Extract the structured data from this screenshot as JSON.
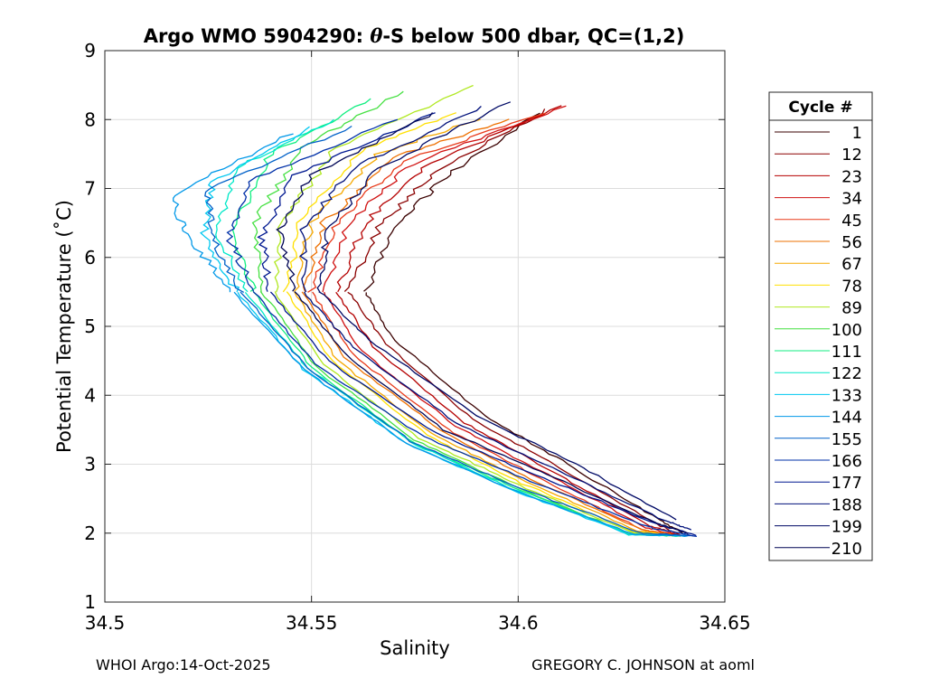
{
  "chart_data": {
    "type": "line",
    "title": "Argo WMO 5904290: θ-S below 500 dbar,  QC=(1,2)",
    "title_prefix": "Argo WMO 5904290: ",
    "title_theta": "θ",
    "title_suffix": "-S below 500 dbar,  QC=(1,2)",
    "xlabel": "Salinity",
    "ylabel": "Potential Temperature (˚C)",
    "xlim": [
      34.5,
      34.65
    ],
    "ylim": [
      1,
      9
    ],
    "xticks": [
      34.5,
      34.55,
      34.6,
      34.65
    ],
    "xtick_labels": [
      "34.5",
      "34.55",
      "34.6",
      "34.65"
    ],
    "yticks": [
      1,
      2,
      3,
      4,
      5,
      6,
      7,
      8,
      9
    ],
    "ytick_labels": [
      "1",
      "2",
      "3",
      "4",
      "5",
      "6",
      "7",
      "8",
      "9"
    ],
    "grid": true,
    "legend": {
      "title": "Cycle #",
      "placement": "right",
      "entries": [
        {
          "label": "1",
          "color": "#3a0000"
        },
        {
          "label": "12",
          "color": "#8b0000"
        },
        {
          "label": "23",
          "color": "#b50000"
        },
        {
          "label": "34",
          "color": "#d01010"
        },
        {
          "label": "45",
          "color": "#e83a1a"
        },
        {
          "label": "56",
          "color": "#ee7000"
        },
        {
          "label": "67",
          "color": "#f5a800"
        },
        {
          "label": "78",
          "color": "#ffe000"
        },
        {
          "label": "89",
          "color": "#b0e820"
        },
        {
          "label": "100",
          "color": "#44e040"
        },
        {
          "label": "111",
          "color": "#10ee80"
        },
        {
          "label": "122",
          "color": "#00e8c8"
        },
        {
          "label": "133",
          "color": "#00c8f0"
        },
        {
          "label": "144",
          "color": "#0098e8"
        },
        {
          "label": "155",
          "color": "#0060c8"
        },
        {
          "label": "166",
          "color": "#0030a8"
        },
        {
          "label": "177",
          "color": "#001890"
        },
        {
          "label": "188",
          "color": "#00107a"
        },
        {
          "label": "199",
          "color": "#000a66"
        },
        {
          "label": "210",
          "color": "#000555"
        }
      ]
    },
    "series": [
      {
        "name": "1",
        "color": "#3a0000",
        "points": [
          [
            34.563,
            5.5
          ],
          [
            34.57,
            4.8
          ],
          [
            34.592,
            3.7
          ],
          [
            34.612,
            3.0
          ],
          [
            34.634,
            2.2
          ],
          [
            34.64,
            2.0
          ]
        ],
        "upper": [
          [
            34.563,
            5.5
          ],
          [
            34.571,
            6.5
          ],
          [
            34.583,
            7.2
          ],
          [
            34.605,
            8.1
          ]
        ]
      },
      {
        "name": "12",
        "color": "#8b0000",
        "points": [
          [
            34.559,
            5.5
          ],
          [
            34.568,
            4.75
          ],
          [
            34.589,
            3.65
          ],
          [
            34.61,
            2.95
          ],
          [
            34.633,
            2.15
          ],
          [
            34.639,
            1.98
          ]
        ],
        "upper": [
          [
            34.559,
            5.5
          ],
          [
            34.567,
            6.5
          ],
          [
            34.58,
            7.25
          ],
          [
            34.607,
            8.15
          ]
        ]
      },
      {
        "name": "23",
        "color": "#b50000",
        "points": [
          [
            34.556,
            5.5
          ],
          [
            34.565,
            4.7
          ],
          [
            34.587,
            3.6
          ],
          [
            34.608,
            2.9
          ],
          [
            34.632,
            2.1
          ],
          [
            34.639,
            1.97
          ]
        ],
        "upper": [
          [
            34.556,
            5.5
          ],
          [
            34.563,
            6.5
          ],
          [
            34.577,
            7.3
          ],
          [
            34.61,
            8.2
          ]
        ]
      },
      {
        "name": "34",
        "color": "#d01010",
        "points": [
          [
            34.553,
            5.5
          ],
          [
            34.562,
            4.65
          ],
          [
            34.585,
            3.55
          ],
          [
            34.607,
            2.85
          ],
          [
            34.631,
            2.08
          ],
          [
            34.639,
            1.97
          ]
        ],
        "upper": [
          [
            34.553,
            5.5
          ],
          [
            34.559,
            6.5
          ],
          [
            34.574,
            7.35
          ],
          [
            34.612,
            8.2
          ]
        ]
      },
      {
        "name": "45",
        "color": "#e83a1a",
        "points": [
          [
            34.55,
            5.5
          ],
          [
            34.56,
            4.6
          ],
          [
            34.583,
            3.5
          ],
          [
            34.605,
            2.8
          ],
          [
            34.63,
            2.05
          ],
          [
            34.639,
            1.96
          ]
        ],
        "upper": [
          [
            34.55,
            5.5
          ],
          [
            34.556,
            6.5
          ],
          [
            34.572,
            7.4
          ],
          [
            34.606,
            8.1
          ]
        ]
      },
      {
        "name": "56",
        "color": "#ee7000",
        "points": [
          [
            34.548,
            5.5
          ],
          [
            34.558,
            4.55
          ],
          [
            34.581,
            3.5
          ],
          [
            34.603,
            2.78
          ],
          [
            34.63,
            2.05
          ],
          [
            34.639,
            1.96
          ]
        ],
        "upper": [
          [
            34.548,
            5.5
          ],
          [
            34.553,
            6.5
          ],
          [
            34.57,
            7.45
          ],
          [
            34.598,
            8.0
          ]
        ]
      },
      {
        "name": "67",
        "color": "#f5a800",
        "points": [
          [
            34.546,
            5.5
          ],
          [
            34.556,
            4.52
          ],
          [
            34.579,
            3.45
          ],
          [
            34.602,
            2.75
          ],
          [
            34.629,
            2.03
          ],
          [
            34.639,
            1.96
          ]
        ],
        "upper": [
          [
            34.546,
            5.5
          ],
          [
            34.55,
            6.5
          ],
          [
            34.566,
            7.5
          ],
          [
            34.59,
            8.0
          ]
        ]
      },
      {
        "name": "78",
        "color": "#ffe000",
        "points": [
          [
            34.544,
            5.5
          ],
          [
            34.555,
            4.5
          ],
          [
            34.578,
            3.42
          ],
          [
            34.601,
            2.72
          ],
          [
            34.628,
            2.02
          ],
          [
            34.639,
            1.96
          ]
        ],
        "upper": [
          [
            34.544,
            5.5
          ],
          [
            34.547,
            6.5
          ],
          [
            34.562,
            7.55
          ],
          [
            34.585,
            8.1
          ]
        ]
      },
      {
        "name": "89",
        "color": "#b0e820",
        "points": [
          [
            34.541,
            5.5
          ],
          [
            34.553,
            4.45
          ],
          [
            34.576,
            3.38
          ],
          [
            34.6,
            2.7
          ],
          [
            34.628,
            2.0
          ],
          [
            34.639,
            1.96
          ]
        ],
        "upper": [
          [
            34.541,
            5.5
          ],
          [
            34.543,
            6.5
          ],
          [
            34.556,
            7.6
          ],
          [
            34.59,
            8.5
          ]
        ]
      },
      {
        "name": "100",
        "color": "#44e040",
        "points": [
          [
            34.538,
            5.5
          ],
          [
            34.551,
            4.42
          ],
          [
            34.575,
            3.35
          ],
          [
            34.599,
            2.68
          ],
          [
            34.627,
            1.99
          ],
          [
            34.639,
            1.96
          ]
        ],
        "upper": [
          [
            34.538,
            5.5
          ],
          [
            34.536,
            6.5
          ],
          [
            34.548,
            7.6
          ],
          [
            34.572,
            8.4
          ]
        ]
      },
      {
        "name": "111",
        "color": "#10ee80",
        "points": [
          [
            34.536,
            5.5
          ],
          [
            34.55,
            4.4
          ],
          [
            34.574,
            3.33
          ],
          [
            34.599,
            2.66
          ],
          [
            34.627,
            1.98
          ],
          [
            34.639,
            1.96
          ]
        ],
        "upper": [
          [
            34.536,
            5.5
          ],
          [
            34.531,
            6.4
          ],
          [
            34.54,
            7.5
          ],
          [
            34.565,
            8.3
          ]
        ]
      },
      {
        "name": "122",
        "color": "#00e8c8",
        "points": [
          [
            34.534,
            5.5
          ],
          [
            34.549,
            4.4
          ],
          [
            34.574,
            3.32
          ],
          [
            34.598,
            2.65
          ],
          [
            34.627,
            1.98
          ],
          [
            34.639,
            1.96
          ]
        ],
        "upper": [
          [
            34.534,
            5.5
          ],
          [
            34.527,
            6.4
          ],
          [
            34.532,
            7.3
          ],
          [
            34.555,
            8.0
          ]
        ]
      },
      {
        "name": "133",
        "color": "#00c8f0",
        "points": [
          [
            34.532,
            5.5
          ],
          [
            34.548,
            4.38
          ],
          [
            34.573,
            3.3
          ],
          [
            34.598,
            2.64
          ],
          [
            34.627,
            1.98
          ],
          [
            34.64,
            1.96
          ]
        ],
        "upper": [
          [
            34.532,
            5.5
          ],
          [
            34.524,
            6.3
          ],
          [
            34.526,
            7.1
          ],
          [
            34.55,
            7.9
          ]
        ]
      },
      {
        "name": "144",
        "color": "#0098e8",
        "points": [
          [
            34.531,
            5.5
          ],
          [
            34.548,
            4.38
          ],
          [
            34.573,
            3.3
          ],
          [
            34.598,
            2.64
          ],
          [
            34.628,
            1.98
          ],
          [
            34.641,
            1.96
          ]
        ],
        "upper": [
          [
            34.531,
            5.5
          ],
          [
            34.52,
            6.3
          ],
          [
            34.516,
            6.9
          ],
          [
            34.545,
            7.8
          ]
        ]
      },
      {
        "name": "155",
        "color": "#0060c8",
        "points": [
          [
            34.533,
            5.5
          ],
          [
            34.549,
            4.4
          ],
          [
            34.574,
            3.33
          ],
          [
            34.6,
            2.66
          ],
          [
            34.63,
            2.0
          ],
          [
            34.642,
            1.96
          ]
        ],
        "upper": [
          [
            34.533,
            5.5
          ],
          [
            34.526,
            6.3
          ],
          [
            34.525,
            7.0
          ],
          [
            34.56,
            7.9
          ]
        ]
      },
      {
        "name": "166",
        "color": "#0030a8",
        "points": [
          [
            34.536,
            5.5
          ],
          [
            34.551,
            4.45
          ],
          [
            34.577,
            3.4
          ],
          [
            34.603,
            2.75
          ],
          [
            34.632,
            2.08
          ],
          [
            34.643,
            1.96
          ]
        ],
        "upper": [
          [
            34.536,
            5.5
          ],
          [
            34.53,
            6.3
          ],
          [
            34.535,
            7.1
          ],
          [
            34.57,
            8.0
          ]
        ]
      },
      {
        "name": "177",
        "color": "#001890",
        "points": [
          [
            34.54,
            5.5
          ],
          [
            34.554,
            4.5
          ],
          [
            34.58,
            3.45
          ],
          [
            34.606,
            2.8
          ],
          [
            34.634,
            2.12
          ],
          [
            34.643,
            1.97
          ]
        ],
        "upper": [
          [
            34.54,
            5.5
          ],
          [
            34.538,
            6.3
          ],
          [
            34.546,
            7.2
          ],
          [
            34.58,
            8.1
          ]
        ]
      },
      {
        "name": "188",
        "color": "#00107a",
        "points": [
          [
            34.548,
            5.5
          ],
          [
            34.56,
            4.7
          ],
          [
            34.585,
            3.6
          ],
          [
            34.61,
            2.9
          ],
          [
            34.636,
            2.17
          ],
          [
            34.642,
            2.05
          ]
        ],
        "upper": [
          [
            34.548,
            5.5
          ],
          [
            34.548,
            6.4
          ],
          [
            34.56,
            7.3
          ],
          [
            34.592,
            8.2
          ]
        ]
      },
      {
        "name": "199",
        "color": "#000a66",
        "points": [
          [
            34.552,
            5.5
          ],
          [
            34.564,
            4.8
          ],
          [
            34.59,
            3.7
          ],
          [
            34.614,
            3.0
          ],
          [
            34.638,
            2.2
          ]
        ],
        "upper": [
          [
            34.552,
            5.5
          ],
          [
            34.554,
            6.4
          ],
          [
            34.566,
            7.3
          ],
          [
            34.598,
            8.25
          ]
        ]
      },
      {
        "name": "210",
        "color": "#000555",
        "points": [
          [
            34.546,
            5.5
          ],
          [
            34.558,
            4.6
          ],
          [
            34.582,
            3.5
          ],
          [
            34.607,
            2.85
          ],
          [
            34.633,
            2.15
          ],
          [
            34.641,
            2.0
          ]
        ],
        "upper": [
          [
            34.546,
            5.5
          ],
          [
            34.542,
            6.4
          ],
          [
            34.55,
            7.2
          ],
          [
            34.58,
            8.1
          ]
        ]
      }
    ]
  },
  "footer": {
    "left": "WHOI Argo:14-Oct-2025",
    "right": "GREGORY C. JOHNSON at aoml"
  }
}
